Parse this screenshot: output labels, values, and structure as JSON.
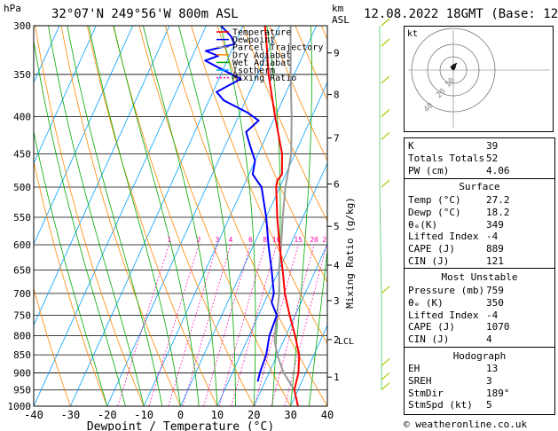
{
  "header": {
    "location": "32°07'N  249°56'W  800m  ASL",
    "date": "12.08.2022  18GMT  (Base: 12)",
    "hpa_label": "hPa",
    "km_label": "km",
    "asl_label": "ASL"
  },
  "chart_data": {
    "type": "skew-t",
    "xlabel": "Dewpoint / Temperature (°C)",
    "ylabel_right": "Mixing Ratio (g/kg)",
    "x_ticks": [
      -40,
      -30,
      -20,
      -10,
      0,
      10,
      20,
      30,
      40
    ],
    "pressure_ticks": [
      300,
      350,
      400,
      450,
      500,
      550,
      600,
      650,
      700,
      750,
      800,
      850,
      900,
      950,
      1000
    ],
    "km_ticks": [
      {
        "label": "9",
        "p": 327
      },
      {
        "label": "8",
        "p": 373
      },
      {
        "label": "7",
        "p": 428
      },
      {
        "label": "6",
        "p": 495
      },
      {
        "label": "5",
        "p": 566
      },
      {
        "label": "4",
        "p": 640
      },
      {
        "label": "3",
        "p": 716
      },
      {
        "label": "2",
        "p": 810
      },
      {
        "label": "1",
        "p": 912
      }
    ],
    "lcl_label": "LCL",
    "lcl_pressure": 812,
    "mixing_ratio_labels": [
      "1",
      "2",
      "3",
      "4",
      "6",
      "8",
      "10",
      "15",
      "20",
      "25"
    ],
    "mixing_ratio_values": [
      1,
      2,
      3,
      4,
      6,
      8,
      10,
      15,
      20,
      25
    ],
    "legend": [
      "Temperature",
      "Dewpoint",
      "Parcel Trajectory",
      "Dry Adiabat",
      "Wet Adiabat",
      "Isotherm",
      "Mixing Ratio"
    ],
    "colors": {
      "temperature": "#ff0000",
      "dewpoint": "#0000ff",
      "parcel": "#999999",
      "dry_adiabat": "#ff8800",
      "wet_adiabat": "#00aa00",
      "isotherm": "#00a0ff",
      "mixing_ratio": "#ff00aa"
    },
    "temperature": [
      [
        1000,
        32
      ],
      [
        950,
        29
      ],
      [
        900,
        28
      ],
      [
        850,
        26
      ],
      [
        800,
        22.5
      ],
      [
        750,
        18.5
      ],
      [
        700,
        14.5
      ],
      [
        650,
        11
      ],
      [
        600,
        7
      ],
      [
        550,
        3
      ],
      [
        500,
        -1
      ],
      [
        490,
        -1.5
      ],
      [
        480,
        -1
      ],
      [
        450,
        -3.5
      ],
      [
        400,
        -10
      ],
      [
        350,
        -17
      ],
      [
        320,
        -21
      ],
      [
        300,
        -24
      ]
    ],
    "dewpoint": [
      [
        925,
        18
      ],
      [
        900,
        17.5
      ],
      [
        850,
        17
      ],
      [
        800,
        15.5
      ],
      [
        750,
        15
      ],
      [
        720,
        12
      ],
      [
        700,
        11.5
      ],
      [
        650,
        8
      ],
      [
        600,
        4
      ],
      [
        550,
        0
      ],
      [
        500,
        -5
      ],
      [
        490,
        -7
      ],
      [
        480,
        -9
      ],
      [
        460,
        -10
      ],
      [
        440,
        -13
      ],
      [
        420,
        -16
      ],
      [
        405,
        -14
      ],
      [
        395,
        -18
      ],
      [
        380,
        -26
      ],
      [
        370,
        -29
      ],
      [
        355,
        -24
      ],
      [
        345,
        -30
      ],
      [
        335,
        -36
      ],
      [
        330,
        -33
      ],
      [
        325,
        -37
      ],
      [
        318,
        -30
      ],
      [
        310,
        -32
      ],
      [
        300,
        -36
      ]
    ],
    "parcel": [
      [
        950,
        29
      ],
      [
        900,
        24
      ],
      [
        850,
        20
      ],
      [
        812,
        17.5
      ],
      [
        750,
        15
      ],
      [
        700,
        13
      ],
      [
        650,
        10
      ],
      [
        600,
        7.5
      ],
      [
        550,
        4.5
      ],
      [
        500,
        1.5
      ],
      [
        450,
        -1
      ],
      [
        400,
        -5.5
      ],
      [
        350,
        -11
      ],
      [
        300,
        -17
      ]
    ]
  },
  "hodograph": {
    "label": "kt",
    "ring_labels": [
      "10",
      "20",
      "40"
    ]
  },
  "indices": [
    {
      "label": "K",
      "value": "39"
    },
    {
      "label": "Totals Totals",
      "value": "52"
    },
    {
      "label": "PW (cm)",
      "value": "4.06"
    }
  ],
  "surface": {
    "title": "Surface",
    "rows": [
      {
        "label": "Temp (°C)",
        "value": "27.2"
      },
      {
        "label": "Dewp (°C)",
        "value": "18.2"
      },
      {
        "label": "θₑ(K)",
        "value": "349"
      },
      {
        "label": "Lifted Index",
        "value": "-4"
      },
      {
        "label": "CAPE (J)",
        "value": "889"
      },
      {
        "label": "CIN (J)",
        "value": "121"
      }
    ]
  },
  "most_unstable": {
    "title": "Most Unstable",
    "rows": [
      {
        "label": "Pressure (mb)",
        "value": "759"
      },
      {
        "label": "θₑ (K)",
        "value": "350"
      },
      {
        "label": "Lifted Index",
        "value": "-4"
      },
      {
        "label": "CAPE (J)",
        "value": "1070"
      },
      {
        "label": "CIN (J)",
        "value": "4"
      }
    ]
  },
  "hodograph_table": {
    "title": "Hodograph",
    "rows": [
      {
        "label": "EH",
        "value": "13"
      },
      {
        "label": "SREH",
        "value": "3"
      },
      {
        "label": "StmDir",
        "value": "189°"
      },
      {
        "label": "StmSpd (kt)",
        "value": "5"
      }
    ]
  },
  "footer": {
    "credit": "© weatheronline.co.uk"
  }
}
